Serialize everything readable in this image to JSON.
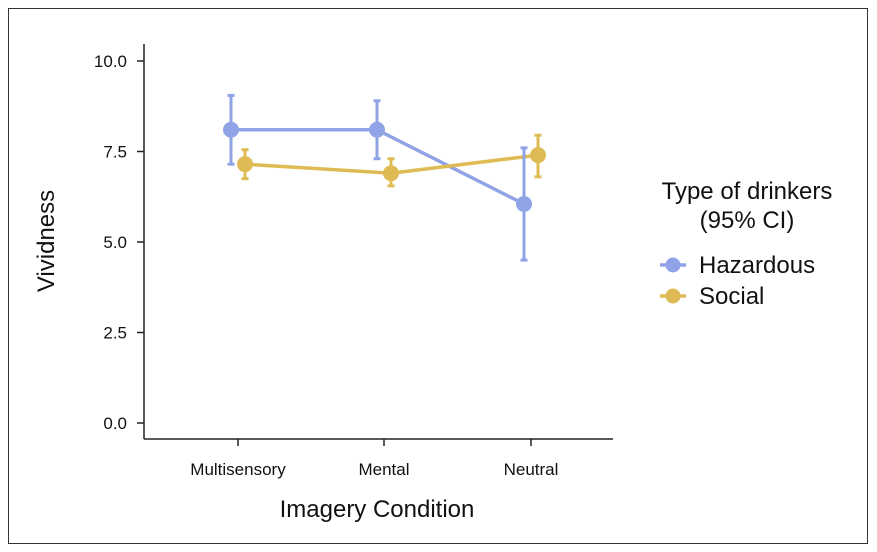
{
  "chart_data": {
    "type": "line",
    "title": "",
    "xlabel": "Imagery Condition",
    "ylabel": "Vividness",
    "categories": [
      "Multisensory",
      "Mental",
      "Neutral"
    ],
    "ylim": [
      0,
      10
    ],
    "yticks": [
      "0.0",
      "2.5",
      "5.0",
      "7.5",
      "10.0"
    ],
    "grid": false,
    "legend": {
      "title_line1": "Type of drinkers",
      "title_line2": "(95% CI)",
      "placement": "right"
    },
    "series": [
      {
        "name": "Hazardous",
        "color": "#8fa3e6",
        "values": [
          8.1,
          8.1,
          6.05
        ],
        "ci_low": [
          7.15,
          7.3,
          4.5
        ],
        "ci_high": [
          9.05,
          8.9,
          7.6
        ]
      },
      {
        "name": "Social",
        "color": "#dfbb55",
        "values": [
          7.15,
          6.9,
          7.4
        ],
        "ci_low": [
          6.75,
          6.55,
          6.8
        ],
        "ci_high": [
          7.55,
          7.3,
          7.95
        ]
      }
    ]
  }
}
